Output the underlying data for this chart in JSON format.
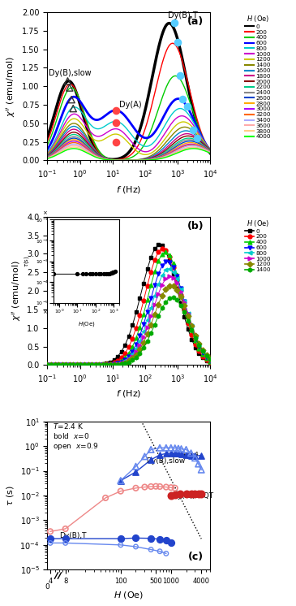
{
  "panel_a": {
    "title": "(a)",
    "xlabel": "f (Hz)",
    "ylabel": "χ'' (emu/mol)",
    "xlim": [
      0.1,
      10000
    ],
    "ylim": [
      0,
      2.0
    ],
    "legend_title": "H (Oe)",
    "field_values": [
      0,
      200,
      400,
      600,
      800,
      1000,
      1200,
      1400,
      1600,
      1800,
      2000,
      2200,
      2400,
      2600,
      2800,
      3000,
      3200,
      3400,
      3600,
      3800,
      4000
    ],
    "field_colors": [
      "#000000",
      "#ff0000",
      "#00cc00",
      "#0000ff",
      "#00cccc",
      "#cc00cc",
      "#cccc00",
      "#888800",
      "#0088cc",
      "#cc0088",
      "#880000",
      "#00cc88",
      "#888888",
      "#0044cc",
      "#ffaa00",
      "#aa00ff",
      "#ff6600",
      "#aaaaff",
      "#ffaaaa",
      "#ffcc88",
      "#00ff00"
    ]
  },
  "panel_b": {
    "title": "(b)",
    "xlabel": "f (Hz)",
    "ylabel": "χ'' (emu/mol)",
    "xlim": [
      0.1,
      10000
    ],
    "ylim": [
      0,
      4.0
    ],
    "legend_title": "H (Oe)",
    "field_values": [
      0,
      200,
      400,
      600,
      800,
      1000,
      1200,
      1400
    ],
    "field_colors": [
      "#000000",
      "#ff0000",
      "#00cc00",
      "#0000ff",
      "#00cccc",
      "#cc00cc",
      "#888800",
      "#00aa00"
    ],
    "field_markers": [
      "s",
      "o",
      "^",
      "v",
      "<",
      ">",
      "D",
      "h"
    ]
  },
  "panel_c": {
    "title": "(c)",
    "xlabel": "H (Oe)",
    "ylabel": "τ (s)"
  }
}
